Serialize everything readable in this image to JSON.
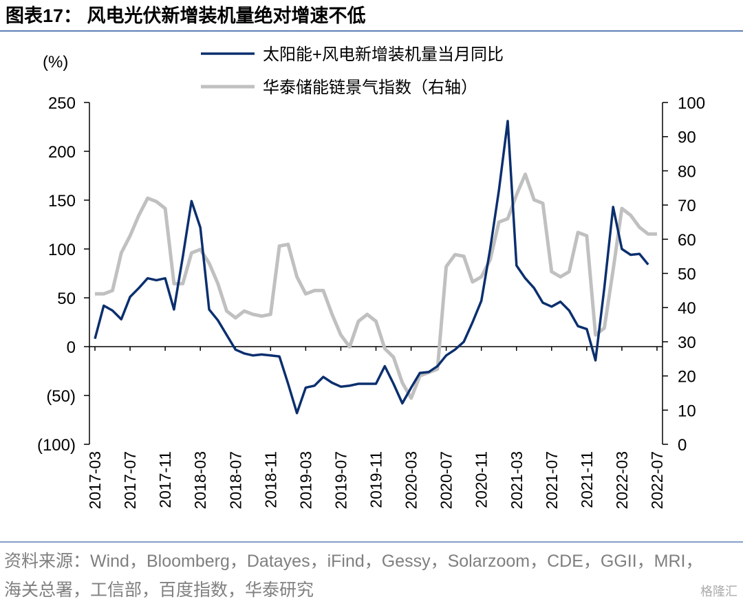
{
  "title": "图表17： 风电光伏新增装机量绝对增速不低",
  "source": "资料来源：Wind，Bloomberg，Datayes，iFind，Gessy，Solarzoom，CDE，GGII，MRI，海关总署，工信部，百度指数，华泰研究",
  "watermark": "格隆汇",
  "chart_data": {
    "type": "line",
    "y_label": "(%)",
    "categories": [
      "2017-03",
      null,
      null,
      null,
      "2017-07",
      null,
      null,
      null,
      "2017-11",
      null,
      null,
      null,
      "2018-03",
      null,
      null,
      null,
      "2018-07",
      null,
      null,
      null,
      "2018-11",
      null,
      null,
      null,
      "2019-03",
      null,
      null,
      null,
      "2019-07",
      null,
      null,
      null,
      "2019-11",
      null,
      null,
      null,
      "2020-03",
      null,
      null,
      null,
      "2020-07",
      null,
      null,
      null,
      "2020-11",
      null,
      null,
      null,
      "2021-03",
      null,
      null,
      null,
      "2021-07",
      null,
      null,
      null,
      "2021-11",
      null,
      null,
      null,
      "2022-03",
      null,
      null,
      null,
      "2022-07"
    ],
    "series": [
      {
        "name": "太阳能+风电新增装机量当月同比",
        "color": "#0b2f6e",
        "values": [
          8,
          42,
          37,
          28,
          51,
          60,
          70,
          68,
          70,
          38,
          92,
          149,
          122,
          38,
          27,
          12,
          -3,
          -7,
          -9,
          -8,
          -9,
          -10,
          -38,
          -68,
          -42,
          -40,
          -31,
          -37,
          -41,
          -40,
          -38,
          -38,
          -38,
          -20,
          -38,
          -58,
          -42,
          -27,
          -26,
          -20,
          -9,
          -3,
          5,
          25,
          47,
          100,
          160,
          231,
          83,
          70,
          60,
          45,
          41,
          46,
          37,
          21,
          18,
          -14,
          60,
          143,
          100,
          94,
          95,
          84,
          null
        ]
      },
      {
        "name": "华泰储能链景气指数（右轴）",
        "color": "#c0c0c0",
        "axis": "y2",
        "values": [
          44,
          44,
          45,
          56,
          61,
          67,
          72,
          71,
          69,
          47,
          47,
          56,
          57,
          53,
          47,
          39,
          37,
          39,
          38,
          37.5,
          38,
          58,
          58.5,
          49,
          44,
          45,
          45,
          38,
          32,
          28.5,
          36,
          38,
          36,
          28,
          25.5,
          18,
          13.5,
          20,
          21,
          22,
          52,
          55.5,
          55,
          47.5,
          49,
          54,
          65,
          66,
          73,
          79,
          71.5,
          70.5,
          50.5,
          49,
          50.5,
          62,
          61,
          32,
          34,
          51,
          69,
          67,
          63.5,
          61.5,
          61.5
        ]
      }
    ],
    "ylim": [
      -100,
      250
    ],
    "yticks": [
      {
        "value": -100,
        "label": "(100)"
      },
      {
        "value": -50,
        "label": "(50)"
      },
      0,
      50,
      100,
      150,
      200,
      250
    ],
    "y2lim": [
      0,
      100
    ],
    "y2ticks": [
      0,
      10,
      20,
      30,
      40,
      50,
      60,
      70,
      80,
      90,
      100
    ],
    "legend": "top"
  }
}
